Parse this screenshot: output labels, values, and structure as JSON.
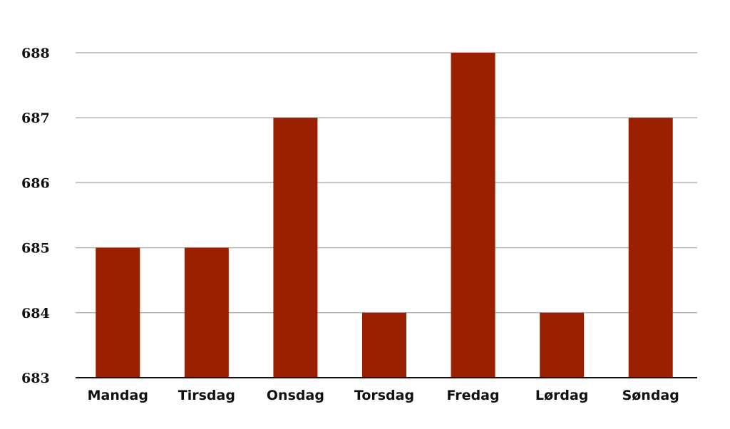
{
  "chart_data": {
    "type": "bar",
    "title": "",
    "xlabel": "",
    "ylabel": "",
    "categories": [
      "Mandag",
      "Tirsdag",
      "Onsdag",
      "Torsdag",
      "Fredag",
      "Lørdag",
      "Søndag"
    ],
    "values": [
      685,
      685,
      687,
      684,
      688,
      684,
      687
    ],
    "ylim": [
      683,
      688
    ],
    "yticks": [
      "683",
      "684",
      "685",
      "686",
      "687",
      "688"
    ],
    "grid": true,
    "legend": "none",
    "colors": {
      "bar": "#9b2000",
      "grid": "#b3b3b3",
      "axis": "#111111"
    }
  }
}
